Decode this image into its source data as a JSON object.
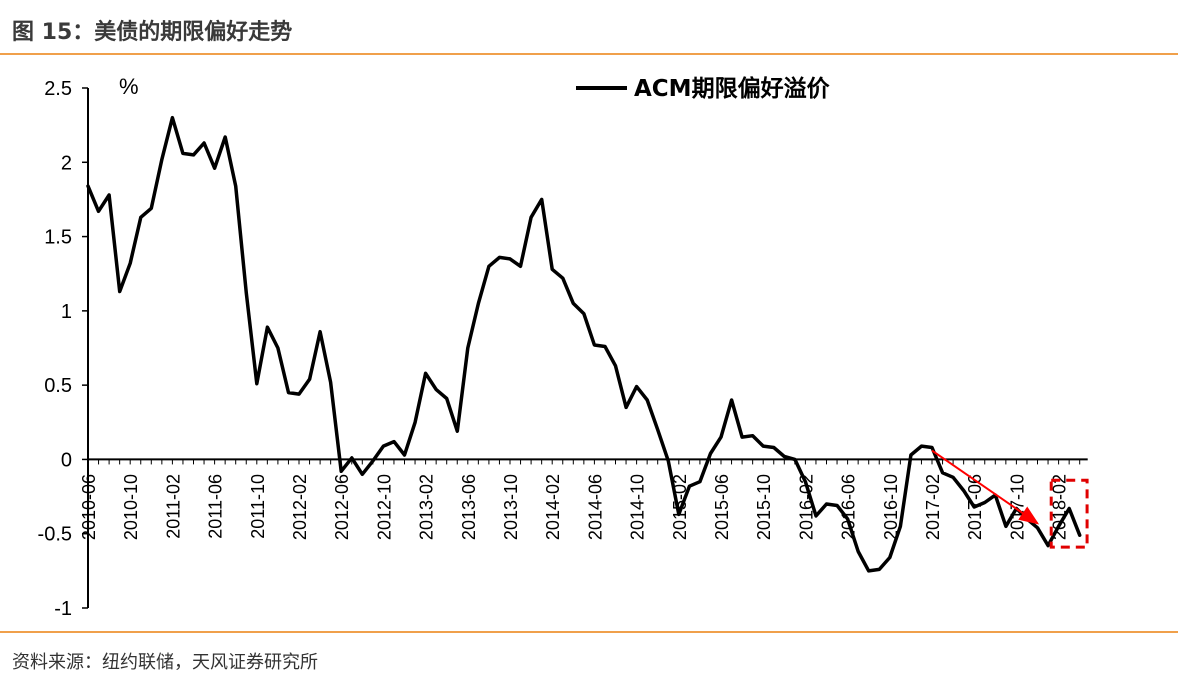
{
  "figure": {
    "title": "图 15：美债的期限偏好走势",
    "source": "资料来源：纽约联储，天风证券研究所"
  },
  "chart_data": {
    "type": "line",
    "ylabel": "%",
    "ylim": [
      -1,
      2.5
    ],
    "yticks": [
      "2.5",
      "2",
      "1.5",
      "1",
      "0.5",
      "0",
      "-0.5",
      "-1"
    ],
    "ytick_values": [
      2.5,
      2,
      1.5,
      1,
      0.5,
      0,
      -0.5,
      -1
    ],
    "xtick_labels": [
      "2010-06",
      "2010-10",
      "2011-02",
      "2011-06",
      "2011-10",
      "2012-02",
      "2012-06",
      "2012-10",
      "2013-02",
      "2013-06",
      "2013-10",
      "2014-02",
      "2014-06",
      "2014-10",
      "2015-02",
      "2015-06",
      "2015-10",
      "2016-02",
      "2016-06",
      "2016-10",
      "2017-02",
      "2017-06",
      "2017-10",
      "2018-02"
    ],
    "xtick_index": [
      0,
      4,
      8,
      12,
      16,
      20,
      24,
      28,
      32,
      36,
      40,
      44,
      48,
      52,
      56,
      60,
      64,
      68,
      72,
      76,
      80,
      84,
      88,
      92
    ],
    "grid": false,
    "legend_position": "top-center",
    "series": [
      {
        "name": "ACM期限偏好溢价",
        "color": "#000000",
        "start": "2010-06",
        "frequency": "monthly",
        "values": [
          1.84,
          1.67,
          1.78,
          1.13,
          1.32,
          1.63,
          1.69,
          2.02,
          2.3,
          2.06,
          2.05,
          2.13,
          1.96,
          2.17,
          1.84,
          1.12,
          0.51,
          0.89,
          0.75,
          0.45,
          0.44,
          0.54,
          0.86,
          0.52,
          -0.08,
          0.01,
          -0.1,
          -0.01,
          0.09,
          0.12,
          0.03,
          0.25,
          0.58,
          0.47,
          0.41,
          0.19,
          0.75,
          1.05,
          1.3,
          1.36,
          1.35,
          1.3,
          1.63,
          1.75,
          1.28,
          1.22,
          1.05,
          0.98,
          0.77,
          0.76,
          0.63,
          0.35,
          0.49,
          0.4,
          0.2,
          -0.01,
          -0.37,
          -0.18,
          -0.15,
          0.04,
          0.15,
          0.4,
          0.15,
          0.16,
          0.09,
          0.08,
          0.02,
          0.0,
          -0.15,
          -0.38,
          -0.3,
          -0.31,
          -0.4,
          -0.62,
          -0.75,
          -0.74,
          -0.66,
          -0.45,
          0.03,
          0.09,
          0.08,
          -0.09,
          -0.12,
          -0.21,
          -0.32,
          -0.29,
          -0.24,
          -0.45,
          -0.33,
          -0.4,
          -0.46,
          -0.58,
          -0.45,
          -0.33,
          -0.51
        ]
      }
    ],
    "annotations": [
      {
        "type": "arrow",
        "color": "#ff0000",
        "from_index": 80,
        "from_value": 0.06,
        "to_index": 90,
        "to_value": -0.43
      },
      {
        "type": "highlight-box",
        "color": "#e00000",
        "style": "dashed",
        "from_index": 91.3,
        "to_index": 94.7,
        "from_value": -0.59,
        "to_value": -0.14
      }
    ]
  }
}
